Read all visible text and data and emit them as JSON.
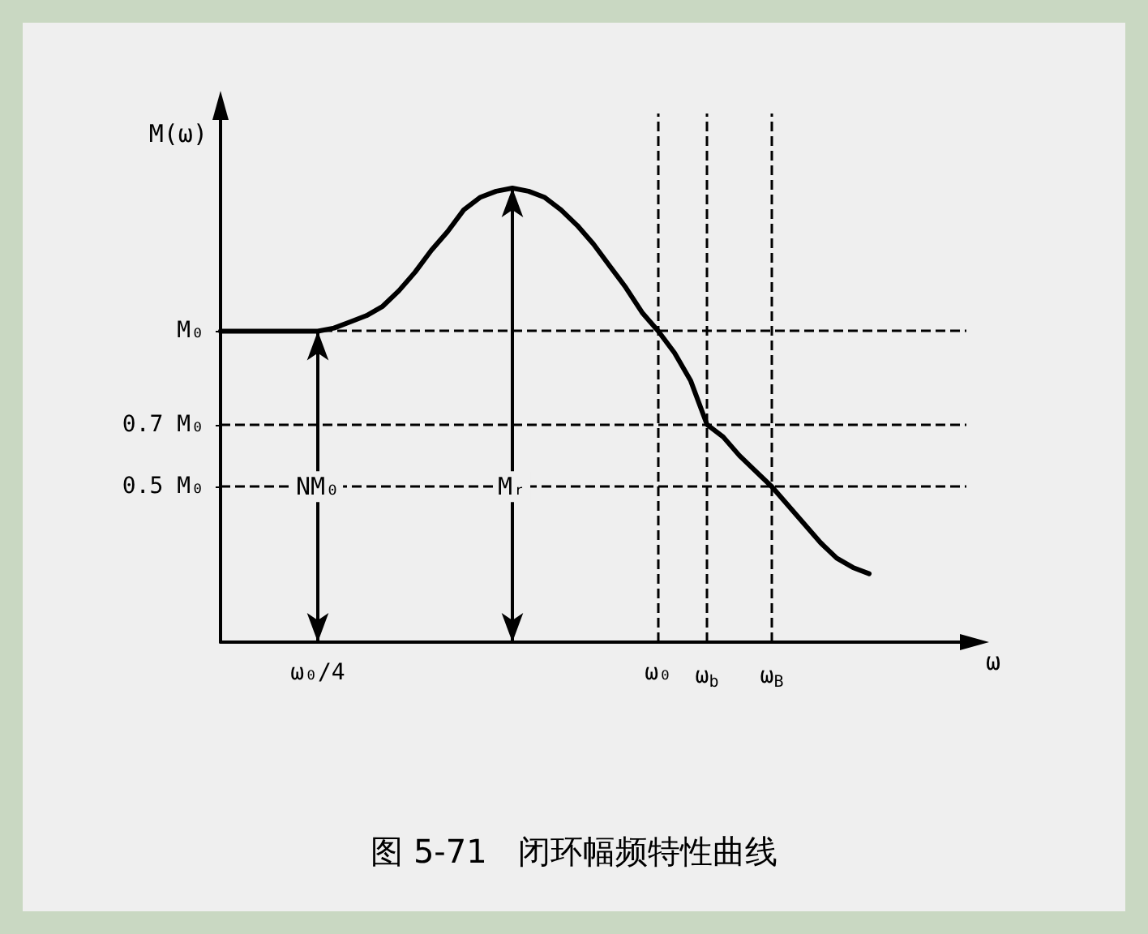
{
  "chart_data": {
    "type": "line",
    "title": "图 5-71   闭环幅频特性曲线",
    "xlabel": "ω",
    "ylabel": "M(ω)",
    "categories": [
      null,
      null,
      null,
      null,
      null,
      null,
      "ω₀/4",
      null,
      null,
      null,
      null,
      null,
      null,
      null,
      null,
      null,
      null,
      null,
      null,
      null,
      null,
      null,
      null,
      null,
      null,
      null,
      null,
      "ω₀",
      null,
      null,
      "ω$_{b}$",
      null,
      null,
      null,
      "ω$_{B}$",
      null,
      null,
      null,
      null,
      null,
      null,
      null,
      null,
      null,
      null,
      null,
      null
    ],
    "series": [
      {
        "color": "#000000",
        "values": [
          1,
          1,
          1,
          1,
          1,
          1,
          1,
          1.01,
          1.03,
          1.05,
          1.08,
          1.13,
          1.19,
          1.26,
          1.32,
          1.39,
          1.43,
          1.45,
          1.46,
          1.45,
          1.43,
          1.39,
          1.34,
          1.28,
          1.21,
          1.14,
          1.06,
          1,
          0.93,
          0.84,
          0.7,
          0.66,
          0.6,
          0.55,
          0.5,
          0.44,
          0.38,
          0.32,
          0.27,
          0.24,
          0.22,
          null,
          null,
          null,
          null,
          null,
          null
        ]
      }
    ],
    "ylim": [
      0,
      1.7
    ],
    "yticks": [
      {
        "value": 0.5,
        "label": "0.5 M₀"
      },
      {
        "value": 0.7,
        "label": "0.7 M₀"
      },
      {
        "value": 1,
        "label": "M₀"
      }
    ],
    "ref_lines": [
      {
        "axis": "y",
        "value": 1,
        "line_style": "dashed"
      },
      {
        "axis": "y",
        "value": 0.7,
        "line_style": "dashed"
      },
      {
        "axis": "y",
        "value": 0.5,
        "line_style": "dashed"
      },
      {
        "axis": "x",
        "value": "ω₀",
        "line_style": "dashed"
      },
      {
        "axis": "x",
        "value": "ω$_{b}$",
        "line_style": "dashed"
      },
      {
        "axis": "x",
        "value": "ω$_{B}$",
        "line_style": "dashed"
      }
    ],
    "annotations": [
      {
        "text": "NM₀",
        "x": "ω₀/4",
        "y": 0.5
      },
      {
        "text": "Mᵣ",
        "y": 0.5
      }
    ],
    "marker": "none",
    "line_style": "solid",
    "grid": false
  }
}
